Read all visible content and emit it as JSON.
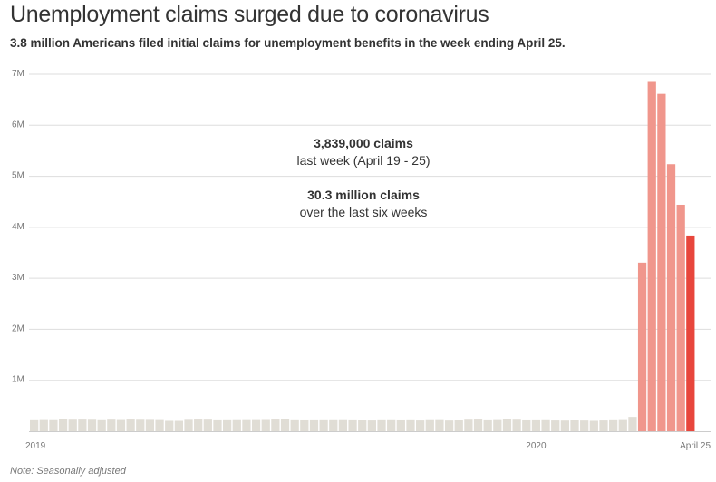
{
  "header": {
    "title": "Unemployment claims surged due to coronavirus",
    "subtitle": "3.8 million Americans filed initial claims for unemployment benefits in the week ending April 25."
  },
  "footer": {
    "note": "Note: Seasonally adjusted"
  },
  "colors": {
    "baseline_bar": "#e0ddd5",
    "surge_bar": "#f0968c",
    "latest_bar": "#e8463c",
    "grid": "#dddddd",
    "text": "#333333",
    "muted": "#777777"
  },
  "annotations": [
    {
      "bold": "3,839,000 claims",
      "normal": "last week (April 19 - 25)"
    },
    {
      "bold": "30.3 million claims",
      "normal": "over the last six weeks"
    }
  ],
  "chart_data": {
    "type": "bar",
    "title": "Unemployment claims surged due to coronavirus",
    "ylim": [
      0,
      7000000
    ],
    "y_ticks": [
      {
        "value": 1000000,
        "label": "1M"
      },
      {
        "value": 2000000,
        "label": "2M"
      },
      {
        "value": 3000000,
        "label": "3M"
      },
      {
        "value": 4000000,
        "label": "4M"
      },
      {
        "value": 5000000,
        "label": "5M"
      },
      {
        "value": 6000000,
        "label": "6M"
      },
      {
        "value": 7000000,
        "label": "7M"
      }
    ],
    "x_ticks": [
      {
        "index": 0,
        "label": "2019"
      },
      {
        "index": 52,
        "label": "2020"
      },
      {
        "index": 68,
        "label": "April 25"
      }
    ],
    "grid": true,
    "highlight": {
      "surge_start_index": 63,
      "latest_index": 68
    },
    "values": [
      216000,
      220000,
      218000,
      231000,
      227000,
      229000,
      226000,
      217000,
      228000,
      221000,
      230000,
      226000,
      224000,
      220000,
      205000,
      204000,
      225000,
      230000,
      228000,
      215000,
      216000,
      218000,
      219000,
      220000,
      222000,
      230000,
      232000,
      216000,
      214000,
      215000,
      216000,
      217000,
      218000,
      215000,
      213000,
      212000,
      216000,
      217000,
      214000,
      216000,
      212000,
      218000,
      219000,
      211000,
      213000,
      227000,
      230000,
      215000,
      220000,
      233000,
      227000,
      214000,
      215000,
      217000,
      212000,
      210000,
      213000,
      211000,
      205000,
      212000,
      216000,
      220000,
      282000,
      3307000,
      6867000,
      6615000,
      5237000,
      4442000,
      3839000
    ]
  }
}
